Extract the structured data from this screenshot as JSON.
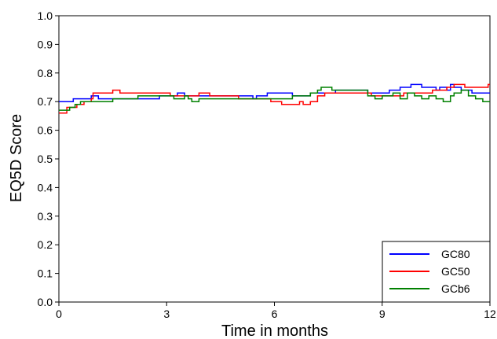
{
  "chart_data": {
    "type": "line",
    "xlabel": "Time in months",
    "ylabel": "EQ5D Score",
    "xlim": [
      0,
      12
    ],
    "ylim": [
      0,
      1
    ],
    "xticks": [
      "0",
      "3",
      "6",
      "9",
      "12"
    ],
    "yticks": [
      "0.0",
      "0.1",
      "0.2",
      "0.3",
      "0.4",
      "0.5",
      "0.6",
      "0.7",
      "0.8",
      "0.9",
      "1.0"
    ],
    "grid": false,
    "legend_position": "bottom-right",
    "series": [
      {
        "name": "GC80",
        "color": "#0000ff",
        "points": [
          [
            0,
            0.7
          ],
          [
            0.25,
            0.7
          ],
          [
            0.4,
            0.71
          ],
          [
            0.75,
            0.71
          ],
          [
            0.9,
            0.72
          ],
          [
            1.1,
            0.71
          ],
          [
            2.7,
            0.71
          ],
          [
            2.8,
            0.72
          ],
          [
            3.2,
            0.72
          ],
          [
            3.3,
            0.73
          ],
          [
            3.5,
            0.72
          ],
          [
            5.3,
            0.72
          ],
          [
            5.4,
            0.71
          ],
          [
            5.5,
            0.72
          ],
          [
            5.8,
            0.73
          ],
          [
            6.4,
            0.73
          ],
          [
            6.5,
            0.72
          ],
          [
            6.8,
            0.72
          ],
          [
            7.0,
            0.73
          ],
          [
            7.5,
            0.73
          ],
          [
            7.7,
            0.74
          ],
          [
            8.4,
            0.74
          ],
          [
            8.6,
            0.73
          ],
          [
            9.0,
            0.73
          ],
          [
            9.2,
            0.74
          ],
          [
            9.5,
            0.75
          ],
          [
            9.7,
            0.75
          ],
          [
            9.8,
            0.76
          ],
          [
            10.0,
            0.76
          ],
          [
            10.1,
            0.75
          ],
          [
            10.4,
            0.75
          ],
          [
            10.5,
            0.74
          ],
          [
            10.6,
            0.75
          ],
          [
            10.8,
            0.74
          ],
          [
            10.9,
            0.76
          ],
          [
            11.0,
            0.75
          ],
          [
            11.2,
            0.74
          ],
          [
            11.4,
            0.74
          ],
          [
            11.5,
            0.73
          ],
          [
            12,
            0.73
          ]
        ]
      },
      {
        "name": "GC50",
        "color": "#ff0000",
        "points": [
          [
            0,
            0.66
          ],
          [
            0.2,
            0.66
          ],
          [
            0.22,
            0.68
          ],
          [
            0.4,
            0.68
          ],
          [
            0.5,
            0.69
          ],
          [
            0.6,
            0.69
          ],
          [
            0.7,
            0.7
          ],
          [
            0.9,
            0.71
          ],
          [
            0.95,
            0.73
          ],
          [
            1.4,
            0.73
          ],
          [
            1.5,
            0.74
          ],
          [
            1.65,
            0.74
          ],
          [
            1.7,
            0.73
          ],
          [
            3.0,
            0.73
          ],
          [
            3.1,
            0.72
          ],
          [
            3.8,
            0.72
          ],
          [
            3.9,
            0.73
          ],
          [
            4.1,
            0.73
          ],
          [
            4.2,
            0.72
          ],
          [
            4.8,
            0.72
          ],
          [
            5.0,
            0.71
          ],
          [
            5.8,
            0.71
          ],
          [
            5.9,
            0.7
          ],
          [
            6.1,
            0.7
          ],
          [
            6.2,
            0.69
          ],
          [
            6.6,
            0.69
          ],
          [
            6.7,
            0.7
          ],
          [
            6.8,
            0.69
          ],
          [
            7.0,
            0.7
          ],
          [
            7.2,
            0.72
          ],
          [
            7.4,
            0.73
          ],
          [
            8.6,
            0.73
          ],
          [
            8.7,
            0.72
          ],
          [
            9.4,
            0.72
          ],
          [
            9.6,
            0.73
          ],
          [
            10.2,
            0.73
          ],
          [
            10.4,
            0.74
          ],
          [
            10.7,
            0.74
          ],
          [
            10.8,
            0.75
          ],
          [
            11.0,
            0.76
          ],
          [
            11.3,
            0.75
          ],
          [
            11.6,
            0.75
          ],
          [
            11.9,
            0.75
          ],
          [
            11.95,
            0.76
          ],
          [
            12,
            0.76
          ]
        ]
      },
      {
        "name": "GCb6",
        "color": "#008000",
        "points": [
          [
            0,
            0.67
          ],
          [
            0.2,
            0.67
          ],
          [
            0.3,
            0.68
          ],
          [
            0.45,
            0.69
          ],
          [
            0.6,
            0.7
          ],
          [
            1.4,
            0.7
          ],
          [
            1.5,
            0.71
          ],
          [
            2.1,
            0.71
          ],
          [
            2.2,
            0.72
          ],
          [
            3.0,
            0.72
          ],
          [
            3.2,
            0.71
          ],
          [
            3.5,
            0.72
          ],
          [
            3.6,
            0.71
          ],
          [
            3.7,
            0.7
          ],
          [
            3.9,
            0.71
          ],
          [
            5.0,
            0.71
          ],
          [
            6.4,
            0.71
          ],
          [
            6.5,
            0.72
          ],
          [
            6.9,
            0.72
          ],
          [
            7.0,
            0.73
          ],
          [
            7.2,
            0.74
          ],
          [
            7.3,
            0.75
          ],
          [
            7.6,
            0.74
          ],
          [
            8.5,
            0.74
          ],
          [
            8.6,
            0.72
          ],
          [
            8.8,
            0.71
          ],
          [
            9.0,
            0.72
          ],
          [
            9.3,
            0.73
          ],
          [
            9.5,
            0.71
          ],
          [
            9.7,
            0.73
          ],
          [
            9.9,
            0.72
          ],
          [
            10.1,
            0.71
          ],
          [
            10.3,
            0.72
          ],
          [
            10.5,
            0.71
          ],
          [
            10.7,
            0.7
          ],
          [
            10.9,
            0.72
          ],
          [
            11.0,
            0.73
          ],
          [
            11.2,
            0.74
          ],
          [
            11.4,
            0.72
          ],
          [
            11.6,
            0.71
          ],
          [
            11.8,
            0.7
          ],
          [
            12,
            0.7
          ]
        ]
      }
    ]
  }
}
